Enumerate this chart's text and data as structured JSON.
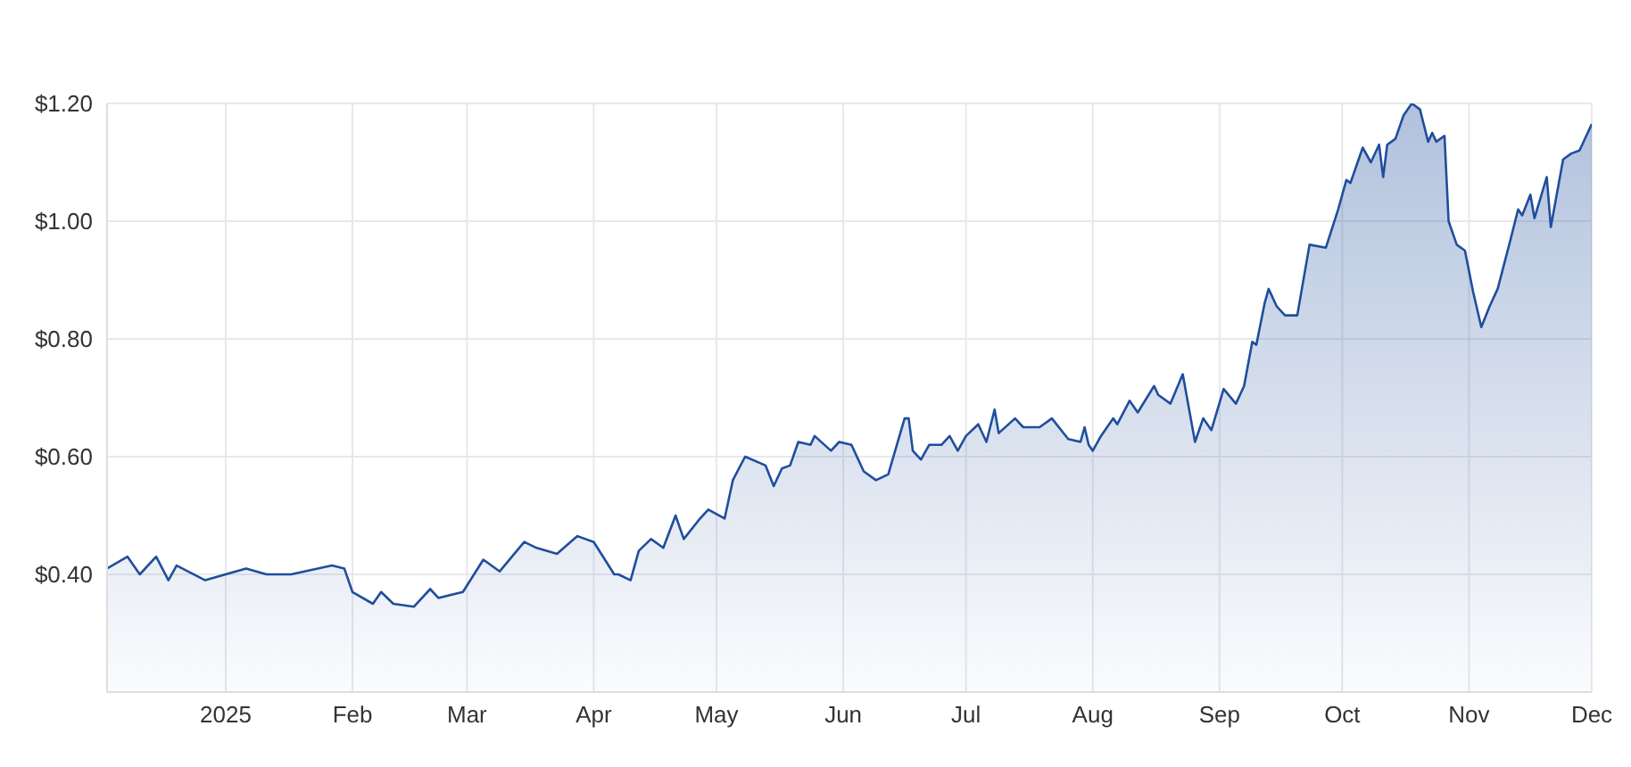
{
  "chart_data": {
    "type": "area",
    "xlim": [
      "2024-12-03",
      "2025-12-01"
    ],
    "ylim": [
      0.2,
      1.2
    ],
    "xticks": [
      {
        "value": "2025-01-01",
        "label": "2025"
      },
      {
        "value": "2025-02-01",
        "label": "Feb"
      },
      {
        "value": "2025-03-01",
        "label": "Mar"
      },
      {
        "value": "2025-04-01",
        "label": "Apr"
      },
      {
        "value": "2025-05-01",
        "label": "May"
      },
      {
        "value": "2025-06-01",
        "label": "Jun"
      },
      {
        "value": "2025-07-01",
        "label": "Jul"
      },
      {
        "value": "2025-08-01",
        "label": "Aug"
      },
      {
        "value": "2025-09-01",
        "label": "Sep"
      },
      {
        "value": "2025-10-01",
        "label": "Oct"
      },
      {
        "value": "2025-11-01",
        "label": "Nov"
      },
      {
        "value": "2025-12-01",
        "label": "Dec"
      }
    ],
    "yticks": [
      {
        "value": 0.4,
        "label": "$0.40"
      },
      {
        "value": 0.6,
        "label": "$0.60"
      },
      {
        "value": 0.8,
        "label": "$0.80"
      },
      {
        "value": 1.0,
        "label": "$1.00"
      },
      {
        "value": 1.2,
        "label": "$1.20"
      }
    ],
    "grid": true,
    "legend": false,
    "series": [
      {
        "color": "#1f4e9c",
        "x": [
          "2024-12-03",
          "2024-12-08",
          "2024-12-11",
          "2024-12-15",
          "2024-12-18",
          "2024-12-20",
          "2024-12-27",
          "2025-01-01",
          "2025-01-06",
          "2025-01-11",
          "2025-01-17",
          "2025-01-27",
          "2025-01-30",
          "2025-02-01",
          "2025-02-06",
          "2025-02-08",
          "2025-02-11",
          "2025-02-16",
          "2025-02-20",
          "2025-02-22",
          "2025-02-28",
          "2025-03-05",
          "2025-03-09",
          "2025-03-15",
          "2025-03-18",
          "2025-03-23",
          "2025-03-28",
          "2025-04-01",
          "2025-04-06",
          "2025-04-07",
          "2025-04-10",
          "2025-04-12",
          "2025-04-15",
          "2025-04-18",
          "2025-04-21",
          "2025-04-23",
          "2025-04-27",
          "2025-04-29",
          "2025-05-03",
          "2025-05-05",
          "2025-05-08",
          "2025-05-13",
          "2025-05-15",
          "2025-05-17",
          "2025-05-19",
          "2025-05-21",
          "2025-05-24",
          "2025-05-25",
          "2025-05-29",
          "2025-05-31",
          "2025-06-03",
          "2025-06-06",
          "2025-06-09",
          "2025-06-12",
          "2025-06-16",
          "2025-06-17",
          "2025-06-18",
          "2025-06-20",
          "2025-06-22",
          "2025-06-25",
          "2025-06-27",
          "2025-06-29",
          "2025-07-01",
          "2025-07-04",
          "2025-07-06",
          "2025-07-08",
          "2025-07-09",
          "2025-07-13",
          "2025-07-15",
          "2025-07-19",
          "2025-07-22",
          "2025-07-26",
          "2025-07-29",
          "2025-07-30",
          "2025-07-31",
          "2025-08-01",
          "2025-08-03",
          "2025-08-06",
          "2025-08-07",
          "2025-08-10",
          "2025-08-12",
          "2025-08-16",
          "2025-08-17",
          "2025-08-20",
          "2025-08-23",
          "2025-08-26",
          "2025-08-28",
          "2025-08-30",
          "2025-09-02",
          "2025-09-05",
          "2025-09-07",
          "2025-09-09",
          "2025-09-10",
          "2025-09-12",
          "2025-09-13",
          "2025-09-15",
          "2025-09-17",
          "2025-09-20",
          "2025-09-23",
          "2025-09-27",
          "2025-09-30",
          "2025-10-02",
          "2025-10-03",
          "2025-10-05",
          "2025-10-06",
          "2025-10-08",
          "2025-10-10",
          "2025-10-11",
          "2025-10-12",
          "2025-10-14",
          "2025-10-16",
          "2025-10-18",
          "2025-10-20",
          "2025-10-22",
          "2025-10-23",
          "2025-10-24",
          "2025-10-26",
          "2025-10-27",
          "2025-10-29",
          "2025-10-31",
          "2025-11-02",
          "2025-11-04",
          "2025-11-06",
          "2025-11-08",
          "2025-11-11",
          "2025-11-13",
          "2025-11-14",
          "2025-11-16",
          "2025-11-17",
          "2025-11-20",
          "2025-11-21",
          "2025-11-24",
          "2025-11-26",
          "2025-11-28",
          "2025-12-01"
        ],
        "values": [
          0.41,
          0.43,
          0.4,
          0.43,
          0.39,
          0.415,
          0.39,
          0.4,
          0.41,
          0.4,
          0.4,
          0.415,
          0.41,
          0.37,
          0.35,
          0.37,
          0.35,
          0.345,
          0.375,
          0.36,
          0.37,
          0.425,
          0.405,
          0.455,
          0.445,
          0.435,
          0.465,
          0.455,
          0.4,
          0.4,
          0.39,
          0.44,
          0.46,
          0.445,
          0.5,
          0.46,
          0.495,
          0.51,
          0.495,
          0.56,
          0.6,
          0.585,
          0.55,
          0.58,
          0.585,
          0.625,
          0.62,
          0.635,
          0.61,
          0.625,
          0.62,
          0.575,
          0.56,
          0.57,
          0.665,
          0.665,
          0.61,
          0.595,
          0.62,
          0.62,
          0.635,
          0.61,
          0.635,
          0.655,
          0.625,
          0.68,
          0.64,
          0.665,
          0.65,
          0.65,
          0.665,
          0.63,
          0.625,
          0.65,
          0.62,
          0.61,
          0.635,
          0.665,
          0.655,
          0.695,
          0.675,
          0.72,
          0.705,
          0.69,
          0.74,
          0.625,
          0.665,
          0.645,
          0.715,
          0.69,
          0.72,
          0.795,
          0.79,
          0.86,
          0.885,
          0.855,
          0.84,
          0.84,
          0.96,
          0.955,
          1.02,
          1.07,
          1.065,
          1.105,
          1.125,
          1.1,
          1.13,
          1.075,
          1.13,
          1.14,
          1.18,
          1.2,
          1.19,
          1.135,
          1.15,
          1.135,
          1.145,
          1.0,
          0.96,
          0.95,
          0.88,
          0.82,
          0.855,
          0.885,
          0.965,
          1.02,
          1.01,
          1.045,
          1.005,
          1.075,
          0.99,
          1.105,
          1.115,
          1.12,
          1.165
        ]
      }
    ]
  }
}
